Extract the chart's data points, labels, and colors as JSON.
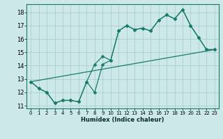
{
  "xlabel": "Humidex (Indice chaleur)",
  "bg_color": "#cce8e8",
  "line_color": "#1a7a6a",
  "grid_color": "#aad0d0",
  "ylim": [
    10.8,
    18.6
  ],
  "xlim": [
    -0.5,
    23.5
  ],
  "yticks": [
    11,
    12,
    13,
    14,
    15,
    16,
    17,
    18
  ],
  "xticks": [
    0,
    1,
    2,
    3,
    4,
    5,
    6,
    7,
    8,
    9,
    10,
    11,
    12,
    13,
    14,
    15,
    16,
    17,
    18,
    19,
    20,
    21,
    22,
    23
  ],
  "line1_x": [
    0,
    1,
    2,
    3,
    4,
    5,
    6,
    7,
    8,
    9,
    10,
    11,
    12,
    13,
    14,
    15,
    16,
    17,
    18,
    19,
    20,
    21,
    22,
    23
  ],
  "line1_y": [
    12.8,
    12.3,
    12.0,
    11.2,
    11.4,
    11.4,
    11.3,
    12.8,
    12.0,
    14.1,
    14.4,
    16.6,
    17.0,
    16.7,
    16.8,
    16.6,
    17.4,
    17.8,
    17.5,
    18.2,
    17.0,
    16.1,
    15.2,
    15.2
  ],
  "line2_x": [
    0,
    1,
    2,
    3,
    4,
    5,
    6,
    7,
    8,
    9,
    10,
    11,
    12,
    13,
    14,
    15,
    16,
    17,
    18,
    19,
    20,
    21,
    22,
    23
  ],
  "line2_y": [
    12.8,
    12.3,
    12.0,
    11.2,
    11.4,
    11.4,
    11.3,
    12.8,
    14.1,
    14.7,
    14.4,
    16.6,
    17.0,
    16.7,
    16.8,
    16.6,
    17.4,
    17.8,
    17.5,
    18.2,
    17.0,
    16.1,
    15.2,
    15.2
  ],
  "line3_x": [
    0,
    23
  ],
  "line3_y": [
    12.8,
    15.2
  ]
}
